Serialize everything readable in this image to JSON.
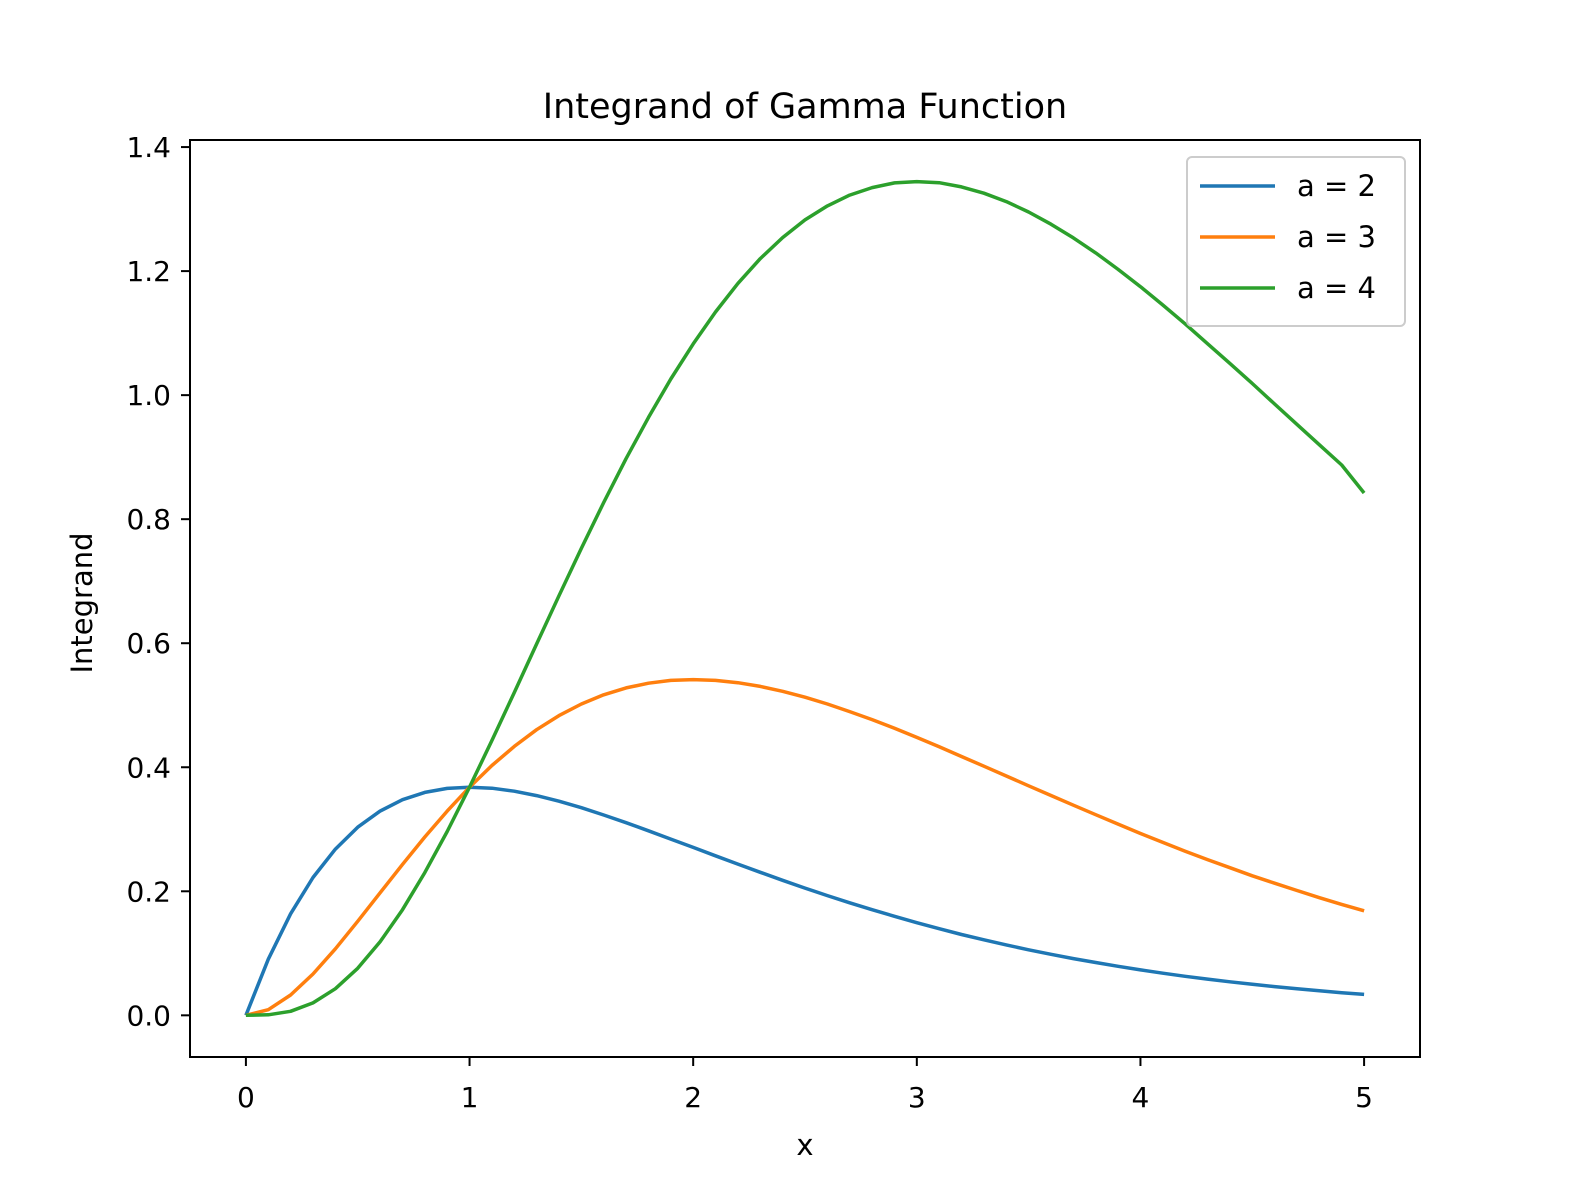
{
  "chart_data": {
    "type": "line",
    "title": "Integrand of Gamma Function",
    "xlabel": "x",
    "ylabel": "Integrand",
    "xlim": [
      -0.25,
      5.25
    ],
    "ylim": [
      -0.0672,
      1.4114
    ],
    "xticks": [
      0,
      1,
      2,
      3,
      4,
      5
    ],
    "xtick_labels": [
      "0",
      "1",
      "2",
      "3",
      "4",
      "5"
    ],
    "yticks": [
      0.0,
      0.2,
      0.4,
      0.6,
      0.8,
      1.0,
      1.2,
      1.4
    ],
    "ytick_labels": [
      "0.0",
      "0.2",
      "0.4",
      "0.6",
      "0.8",
      "1.0",
      "1.2",
      "1.4"
    ],
    "grid": false,
    "legend_position": "top-right",
    "x": [
      0.0,
      0.1,
      0.2,
      0.3,
      0.4,
      0.5,
      0.6,
      0.7,
      0.8,
      0.9,
      1.0,
      1.1,
      1.2,
      1.3,
      1.4,
      1.5,
      1.6,
      1.7,
      1.8,
      1.9,
      2.0,
      2.1,
      2.2,
      2.3,
      2.4,
      2.5,
      2.6,
      2.7,
      2.8,
      2.9,
      3.0,
      3.1,
      3.2,
      3.3,
      3.4,
      3.5,
      3.6,
      3.7,
      3.8,
      3.9,
      4.0,
      4.1,
      4.2,
      4.3,
      4.4,
      4.5,
      4.6,
      4.7,
      4.8,
      4.9,
      5.0
    ],
    "series": [
      {
        "name": "a = 2",
        "color": "#1f77b4",
        "values": [
          0.0,
          0.0905,
          0.1637,
          0.2222,
          0.2681,
          0.3033,
          0.3293,
          0.3476,
          0.3595,
          0.3659,
          0.3679,
          0.3662,
          0.3614,
          0.3543,
          0.3452,
          0.3347,
          0.323,
          0.3106,
          0.2975,
          0.2842,
          0.2707,
          0.2572,
          0.2438,
          0.2306,
          0.2177,
          0.2052,
          0.1931,
          0.1815,
          0.1703,
          0.1596,
          0.1494,
          0.1397,
          0.1304,
          0.1217,
          0.1135,
          0.1057,
          0.0984,
          0.0915,
          0.0851,
          0.0791,
          0.0733,
          0.068,
          0.063,
          0.0584,
          0.0541,
          0.05,
          0.0463,
          0.0428,
          0.0395,
          0.0365,
          0.0337
        ]
      },
      {
        "name": "a = 3",
        "color": "#ff7f0e",
        "values": [
          0.0,
          0.009,
          0.0327,
          0.0667,
          0.1073,
          0.1516,
          0.1976,
          0.2433,
          0.2876,
          0.3293,
          0.3679,
          0.4028,
          0.4337,
          0.4606,
          0.4833,
          0.502,
          0.5168,
          0.528,
          0.5356,
          0.54,
          0.5413,
          0.5401,
          0.5364,
          0.5304,
          0.5225,
          0.513,
          0.502,
          0.4898,
          0.4768,
          0.4629,
          0.4481,
          0.433,
          0.4174,
          0.4017,
          0.3859,
          0.3701,
          0.3544,
          0.3388,
          0.3235,
          0.3084,
          0.2931,
          0.2789,
          0.2647,
          0.2511,
          0.238,
          0.225,
          0.213,
          0.2012,
          0.1896,
          0.1789,
          0.1685
        ]
      },
      {
        "name": "a = 4",
        "color": "#2ca02c",
        "values": [
          0.0,
          0.0009,
          0.0065,
          0.02,
          0.0429,
          0.0758,
          0.1185,
          0.1703,
          0.2301,
          0.2964,
          0.3679,
          0.4431,
          0.5205,
          0.5987,
          0.6766,
          0.753,
          0.8269,
          0.8976,
          0.9641,
          1.026,
          1.0827,
          1.1341,
          1.1801,
          1.2201,
          1.2541,
          1.2825,
          1.3052,
          1.3225,
          1.3347,
          1.3422,
          1.3444,
          1.3425,
          1.3358,
          1.3256,
          1.3121,
          1.2953,
          1.2757,
          1.2536,
          1.2293,
          1.2027,
          1.1749,
          1.1453,
          1.1148,
          1.083,
          1.0512,
          1.0187,
          0.9857,
          0.9528,
          0.9199,
          0.8873,
          0.8422
        ]
      }
    ]
  }
}
